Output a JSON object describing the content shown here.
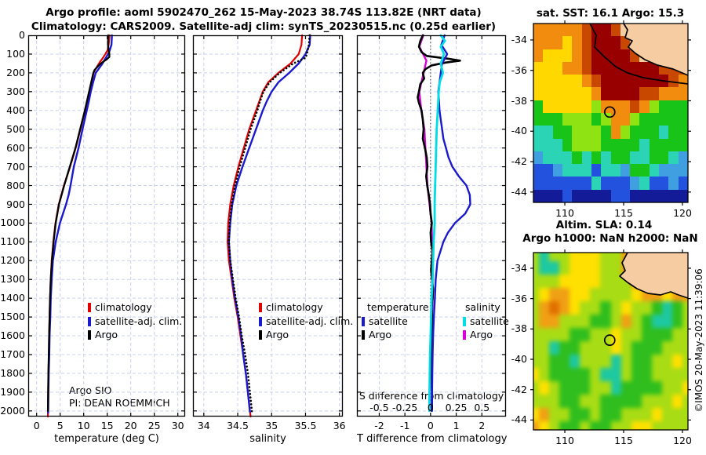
{
  "header": {
    "line1": "Argo profile: aoml 5902470_262 15-May-2023 38.74S 113.82E (NRT data)",
    "line2": "Climatology: CARS2009. Satellite-adj clim: synTS_20230515.nc (0.25d earlier)"
  },
  "credit": "©IMOS 20-May-2023 11:39:06",
  "chart_data": [
    {
      "type": "line",
      "name": "temperature-profile",
      "xlabel": "temperature (deg C)",
      "ylabel": "pressure (db)",
      "xlim": [
        -1.78,
        31.55
      ],
      "ylim": [
        0,
        2030
      ],
      "xticks": [
        0,
        5,
        10,
        15,
        20,
        25,
        30
      ],
      "yticks": [
        0,
        100,
        200,
        300,
        400,
        500,
        600,
        700,
        800,
        900,
        1000,
        1100,
        1200,
        1300,
        1400,
        1500,
        1600,
        1700,
        1800,
        1900,
        2000
      ],
      "grid": true,
      "notes": [
        "Argo SIO",
        "PI: DEAN ROEMMICH"
      ],
      "legend": [
        {
          "label": "climatology",
          "color": "#e00000"
        },
        {
          "label": "satellite-adj. clim.",
          "color": "#1a1acc"
        },
        {
          "label": "Argo",
          "color": "#000000"
        }
      ],
      "series": [
        {
          "name": "climatology",
          "color": "#e00000",
          "width": 2.2,
          "depths": [
            0,
            50,
            80,
            100,
            120,
            140,
            160,
            185,
            200,
            250,
            300,
            350,
            400,
            450,
            500,
            600,
            700,
            800,
            900,
            1000,
            1100,
            1200,
            1300,
            1400,
            1500,
            1600,
            1700,
            1800,
            1900,
            2000,
            2030
          ],
          "values": [
            15.5,
            15.3,
            15.05,
            14.6,
            14.1,
            13.5,
            13.0,
            12.4,
            12.1,
            11.65,
            11.2,
            10.75,
            10.3,
            9.8,
            9.3,
            8.3,
            7.1,
            5.8,
            4.7,
            4.0,
            3.55,
            3.2,
            3.0,
            2.85,
            2.75,
            2.65,
            2.6,
            2.5,
            2.45,
            2.4,
            2.4
          ]
        },
        {
          "name": "satellite-adj-clim",
          "color": "#1a1acc",
          "width": 2.4,
          "depths": [
            0,
            50,
            90,
            120,
            150,
            185,
            200,
            250,
            300,
            350,
            400,
            450,
            500,
            600,
            700,
            800,
            850,
            900,
            950,
            1000,
            1100,
            1200,
            1300,
            1400,
            1500,
            1600,
            1700,
            1800,
            1900,
            2000,
            2010
          ],
          "values": [
            16.0,
            15.9,
            15.4,
            14.7,
            14.0,
            13.0,
            12.55,
            12.0,
            11.5,
            11.1,
            10.65,
            10.2,
            9.75,
            8.9,
            7.9,
            7.2,
            6.8,
            6.25,
            5.6,
            4.95,
            4.05,
            3.45,
            3.2,
            3.0,
            2.9,
            2.75,
            2.68,
            2.57,
            2.5,
            2.45,
            2.45
          ]
        },
        {
          "name": "argo",
          "color": "#000000",
          "width": 2.3,
          "depths": [
            0,
            50,
            80,
            100,
            115,
            130,
            145,
            160,
            185,
            200,
            250,
            300,
            350,
            400,
            450,
            500,
            600,
            700,
            800,
            900,
            1000,
            1100,
            1200,
            1300,
            1400,
            1500,
            1600,
            1700,
            1800,
            1900,
            2000
          ],
          "values": [
            15.2,
            15.15,
            15.3,
            15.45,
            15.45,
            14.8,
            13.9,
            13.2,
            12.3,
            12.05,
            11.6,
            11.15,
            10.7,
            10.25,
            9.75,
            9.25,
            8.25,
            7.05,
            5.85,
            4.75,
            4.05,
            3.6,
            3.25,
            3.0,
            2.85,
            2.75,
            2.65,
            2.58,
            2.5,
            2.45,
            2.4
          ]
        }
      ]
    },
    {
      "type": "line",
      "name": "salinity-profile",
      "xlabel": "salinity",
      "ylabel": "",
      "xlim": [
        33.84,
        36.05
      ],
      "ylim": [
        0,
        2030
      ],
      "xticks": [
        34,
        34.5,
        35,
        35.5,
        36
      ],
      "grid": true,
      "legend": [
        {
          "label": "climatology",
          "color": "#e00000"
        },
        {
          "label": "satellite-adj. clim.",
          "color": "#1a1acc"
        },
        {
          "label": "Argo",
          "color": "#000000"
        }
      ],
      "series": [
        {
          "name": "climatology",
          "color": "#e00000",
          "width": 2.2,
          "depths": [
            0,
            50,
            100,
            150,
            200,
            250,
            300,
            350,
            400,
            500,
            600,
            700,
            800,
            900,
            1000,
            1100,
            1200,
            1300,
            1400,
            1500,
            1600,
            1700,
            1800,
            1900,
            2000,
            2030
          ],
          "values": [
            35.45,
            35.44,
            35.4,
            35.28,
            35.1,
            34.95,
            34.87,
            34.82,
            34.77,
            34.67,
            34.59,
            34.51,
            34.44,
            34.39,
            34.36,
            34.35,
            34.37,
            34.41,
            34.45,
            34.5,
            34.54,
            34.58,
            34.62,
            34.65,
            34.68,
            34.69
          ]
        },
        {
          "name": "satellite-adj-clim",
          "color": "#1a1acc",
          "width": 2.4,
          "depths": [
            0,
            50,
            100,
            150,
            200,
            250,
            300,
            350,
            400,
            500,
            600,
            700,
            800,
            900,
            1000,
            1100,
            1200,
            1300,
            1400,
            1500,
            1600,
            1700,
            1800,
            1900,
            2005
          ],
          "values": [
            35.57,
            35.56,
            35.5,
            35.4,
            35.26,
            35.1,
            35.0,
            34.93,
            34.87,
            34.77,
            34.67,
            34.57,
            34.48,
            34.42,
            34.39,
            34.37,
            34.39,
            34.42,
            34.46,
            34.51,
            34.55,
            34.58,
            34.62,
            34.65,
            34.68
          ]
        },
        {
          "name": "argo",
          "color": "#000000",
          "width": 2.6,
          "dash": "0.1 4.3",
          "depths": [
            0,
            50,
            100,
            120,
            150,
            200,
            250,
            300,
            350,
            400,
            500,
            600,
            700,
            800,
            900,
            1000,
            1100,
            1200,
            1300,
            1400,
            1500,
            1600,
            1700,
            1800,
            1900,
            2005
          ],
          "values": [
            35.56,
            35.55,
            35.52,
            35.5,
            35.32,
            35.12,
            34.97,
            34.88,
            34.83,
            34.79,
            34.69,
            34.61,
            34.53,
            34.46,
            34.41,
            34.38,
            34.37,
            34.39,
            34.43,
            34.47,
            34.52,
            34.56,
            34.61,
            34.65,
            34.68,
            34.71
          ]
        }
      ]
    },
    {
      "type": "line",
      "name": "difference-profile",
      "xlabel": "T difference from climatology",
      "ylabel": "",
      "xlim": [
        -2.87,
        2.94
      ],
      "ylim": [
        0,
        2030
      ],
      "xticks": [
        -2,
        -1,
        0,
        1,
        2
      ],
      "grid": true,
      "zero_line": true,
      "s_axis": {
        "label": "S difference from climatology",
        "tick_labels": [
          "-0.5",
          "-0.25",
          "0",
          "0.25",
          "0.5"
        ],
        "tick_positions": [
          -2,
          -1,
          0,
          1,
          2
        ]
      },
      "legend_groups": [
        {
          "header": "temperature",
          "entries": [
            {
              "label": "satellite",
              "color": "#1a1acc"
            },
            {
              "label": "Argo",
              "color": "#000000"
            }
          ]
        },
        {
          "header": "salinity",
          "entries": [
            {
              "label": "satellite",
              "color": "#00dde6"
            },
            {
              "label": "Argo",
              "color": "#d800d8"
            }
          ]
        }
      ],
      "series": [
        {
          "name": "argo-salinity-diff",
          "color": "#d800d8",
          "width": 2.4,
          "scale": 4,
          "depths": [
            0,
            60,
            135,
            300,
            400,
            500,
            600,
            800,
            1000,
            1200,
            1400,
            1600,
            1800,
            2000
          ],
          "values": [
            -0.07,
            -0.11,
            -0.04,
            -0.11,
            -0.09,
            -0.06,
            -0.05,
            -0.03,
            0.01,
            0.02,
            0.02,
            0.01,
            0.012,
            0.012
          ]
        },
        {
          "name": "argo-temperature-diff",
          "color": "#000000",
          "width": 2.6,
          "depths": [
            0,
            30,
            60,
            90,
            110,
            125,
            135,
            145,
            160,
            180,
            200,
            230,
            260,
            300,
            330,
            360,
            400,
            450,
            500,
            550,
            600,
            650,
            700,
            750,
            800,
            850,
            900,
            950,
            1000,
            1050,
            1100,
            1150,
            1200,
            1250,
            1300,
            1350,
            1400,
            1450,
            1500,
            1600,
            1700,
            1800,
            1900,
            2000
          ],
          "values": [
            -0.3,
            -0.4,
            -0.45,
            -0.35,
            -0.15,
            0.7,
            1.15,
            0.6,
            0.05,
            -0.2,
            -0.3,
            -0.25,
            -0.4,
            -0.45,
            -0.5,
            -0.45,
            -0.35,
            -0.3,
            -0.27,
            -0.3,
            -0.22,
            -0.15,
            -0.12,
            -0.17,
            -0.13,
            -0.07,
            -0.02,
            0.0,
            0.05,
            0.0,
            0.02,
            0.08,
            0.05,
            0.02,
            0.06,
            0.1,
            0.08,
            0.04,
            0.06,
            0.03,
            0.06,
            0.04,
            0.06,
            0.05
          ]
        },
        {
          "name": "satellite-temperature-diff",
          "color": "#1a1acc",
          "width": 2.4,
          "depths": [
            0,
            50,
            100,
            150,
            200,
            250,
            300,
            350,
            400,
            450,
            500,
            550,
            600,
            650,
            700,
            750,
            800,
            850,
            900,
            950,
            1000,
            1050,
            1100,
            1200,
            1300,
            1400,
            1500,
            1600,
            1700,
            1800,
            1900,
            2000
          ],
          "values": [
            0.55,
            0.42,
            0.65,
            0.45,
            0.4,
            0.35,
            0.3,
            0.33,
            0.35,
            0.4,
            0.45,
            0.5,
            0.6,
            0.7,
            0.85,
            1.1,
            1.4,
            1.53,
            1.55,
            1.35,
            0.95,
            0.68,
            0.5,
            0.27,
            0.2,
            0.17,
            0.13,
            0.1,
            0.08,
            0.07,
            0.06,
            0.05
          ]
        },
        {
          "name": "satellite-salinity-diff",
          "color": "#00dde6",
          "width": 2.8,
          "scale": 4,
          "depths": [
            0,
            30,
            60,
            100,
            150,
            200,
            250,
            300,
            400,
            500,
            600,
            700,
            800,
            900,
            1000,
            1100,
            1200,
            1300,
            1400,
            1500,
            1600,
            1700,
            1800,
            1900,
            2000
          ],
          "values": [
            0.1,
            0.14,
            0.1,
            0.13,
            0.1,
            0.12,
            0.09,
            0.08,
            0.07,
            0.06,
            0.055,
            0.05,
            0.045,
            0.04,
            0.04,
            0.03,
            0.025,
            0.02,
            0.01,
            0.005,
            0.0,
            -0.005,
            -0.008,
            -0.01,
            -0.012
          ]
        }
      ]
    },
    {
      "type": "heatmap",
      "name": "sst-map",
      "title": "sat. SST: 16.1 Argo: 15.3",
      "xticks": [
        110,
        115,
        120
      ],
      "yticks": [
        -34,
        -36,
        -38,
        -40,
        -42,
        -44
      ],
      "lon_range": [
        107.33,
        120.47
      ],
      "lat_range": [
        -32.92,
        -44.68
      ],
      "float_lon": 113.82,
      "float_lat": -38.74,
      "palette": {
        "O": "#F28C0F",
        "Y": "#FFD800",
        "D": "#C84800",
        "R": "#980000",
        "G": "#17C417",
        "g": "#8FE312",
        "C": "#2BD4B4",
        "T": "#3F9FE0",
        "B": "#2353DE",
        "N": "#131B99",
        "L": "#F6CDA2"
      },
      "rows": [
        "OOOOODRRDLLLLLLL",
        "OOOYODRRRDLLLLLL",
        "OYYYODRRRRDLLLLL",
        "YYYOODRRRRRRRDDD",
        "YYYYYODRRRRRRRDO",
        "YYYYYYORRRRDDOOO",
        "GYYYYYgOOODOgGGG",
        "GGGgggGgOOgGGGGG",
        "CCGGgggGOgGGGCGG",
        "CCCGgggGGGGCGGGG",
        "TCCCGCGCGGCCGGCT",
        "BBTCCCBCCTGGCTTT",
        "BBBBBBCBBBTCBBTB",
        "NNNBNNNNBBNNNNNN"
      ]
    },
    {
      "type": "heatmap",
      "name": "sla-map",
      "title": "Altim. SLA: 0.14",
      "title2": "Argo h1000: NaN h2000: NaN",
      "xticks": [
        110,
        115,
        120
      ],
      "yticks": [
        -34,
        -36,
        -38,
        -40,
        -42,
        -44
      ],
      "lon_range": [
        107.33,
        120.47
      ],
      "lat_range": [
        -32.97,
        -44.65
      ],
      "float_lon": 113.82,
      "float_lat": -38.74,
      "palette": {
        "Y": "#FFE000",
        "g": "#A8DC14",
        "G": "#2FBE1E",
        "C": "#1EC8A0",
        "O": "#F0A014",
        "D": "#E07000",
        "L": "#F6CDA2"
      },
      "rows": [
        "gCggYYYggOLLLLLL",
        "gCCgYYYggOLLLLLL",
        "gggYYYYgggOOLLLL",
        "gYOOYYggggYOOYOO",
        "gODOYggGgYggGCGg",
        "gOOgggGGgOgGCCGg",
        "ggggGGggYggGGGgg",
        "ggCGGgggYgGGGggg",
        "ggGGCgggCgGGggYg",
        "YgGGGGgCCgGGgggg",
        "gYgGGGggCGGGGggY",
        "gggGGggGGGGgggYg",
        "YOggGGgGGgggYggg",
        "OYgGGgGGggYYgggg"
      ]
    }
  ]
}
